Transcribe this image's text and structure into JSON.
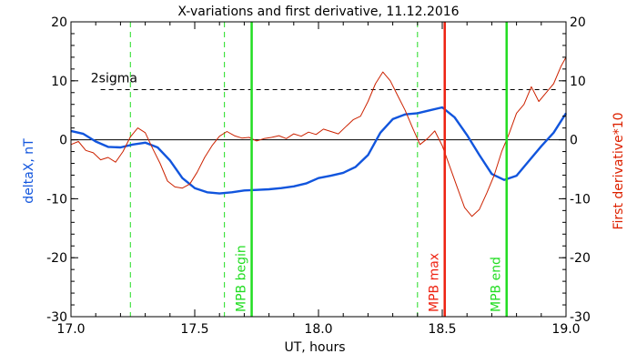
{
  "chart_data": {
    "type": "line",
    "title": "X-variations and first derivative, 11.12.2016",
    "xlabel": "UT, hours",
    "ylabel_left": "deltaX, nT",
    "ylabel_right": "First derivative*10",
    "xlim": [
      17.0,
      19.0
    ],
    "ylim": [
      -30,
      20
    ],
    "xticks": [
      17.0,
      17.5,
      18.0,
      18.5,
      19.0
    ],
    "xtick_labels": [
      "17.0",
      "17.5",
      "18.0",
      "18.5",
      "19.0"
    ],
    "yticks": [
      -30,
      -20,
      -10,
      0,
      10,
      20
    ],
    "ytick_labels": [
      "-30",
      "-20",
      "-10",
      "0",
      "10",
      "20"
    ],
    "threshold": {
      "label": "2sigma",
      "value": 8.5
    },
    "zero_line": 0,
    "dashed_verticals": [
      17.24,
      17.62,
      18.4
    ],
    "markers": [
      {
        "label": "MPB begin",
        "x": 17.73,
        "color": "#22dd22"
      },
      {
        "label": "MPB max",
        "x": 18.51,
        "color": "#ee2211"
      },
      {
        "label": "MPB end",
        "x": 18.76,
        "color": "#22dd22"
      }
    ],
    "series": [
      {
        "name": "deltaX",
        "color": "#1155dd",
        "x": [
          17.0,
          17.05,
          17.1,
          17.15,
          17.2,
          17.25,
          17.3,
          17.35,
          17.4,
          17.45,
          17.5,
          17.55,
          17.6,
          17.65,
          17.7,
          17.75,
          17.8,
          17.85,
          17.9,
          17.95,
          18.0,
          18.05,
          18.1,
          18.15,
          18.2,
          18.25,
          18.3,
          18.35,
          18.4,
          18.45,
          18.5,
          18.55,
          18.6,
          18.65,
          18.7,
          18.75,
          18.8,
          18.85,
          18.9,
          18.95,
          19.0
        ],
        "y": [
          1.5,
          1.0,
          -0.3,
          -1.2,
          -1.3,
          -0.8,
          -0.5,
          -1.3,
          -3.5,
          -6.5,
          -8.2,
          -8.9,
          -9.1,
          -8.9,
          -8.6,
          -8.5,
          -8.4,
          -8.2,
          -7.9,
          -7.4,
          -6.5,
          -6.1,
          -5.6,
          -4.6,
          -2.6,
          1.2,
          3.5,
          4.3,
          4.5,
          5.0,
          5.5,
          3.8,
          0.8,
          -2.6,
          -5.8,
          -6.8,
          -6.1,
          -3.6,
          -1.1,
          1.2,
          4.5
        ]
      },
      {
        "name": "derivative",
        "color": "#cc2200",
        "x": [
          17.0,
          17.03,
          17.06,
          17.09,
          17.12,
          17.15,
          17.18,
          17.21,
          17.24,
          17.27,
          17.3,
          17.33,
          17.36,
          17.39,
          17.42,
          17.45,
          17.48,
          17.51,
          17.54,
          17.57,
          17.6,
          17.63,
          17.66,
          17.69,
          17.72,
          17.75,
          17.78,
          17.81,
          17.84,
          17.87,
          17.9,
          17.93,
          17.96,
          17.99,
          18.02,
          18.05,
          18.08,
          18.11,
          18.14,
          18.17,
          18.2,
          18.23,
          18.26,
          18.29,
          18.32,
          18.35,
          18.38,
          18.41,
          18.44,
          18.47,
          18.5,
          18.53,
          18.56,
          18.59,
          18.62,
          18.65,
          18.68,
          18.71,
          18.74,
          18.77,
          18.8,
          18.83,
          18.86,
          18.89,
          18.92,
          18.95,
          18.98,
          19.0
        ],
        "y": [
          -0.8,
          -0.3,
          -1.8,
          -2.2,
          -3.4,
          -3.0,
          -3.8,
          -2.0,
          0.5,
          2.0,
          1.2,
          -1.5,
          -4.0,
          -7.0,
          -8.0,
          -8.2,
          -7.5,
          -5.5,
          -3.0,
          -1.0,
          0.6,
          1.4,
          0.7,
          0.3,
          0.4,
          -0.2,
          0.2,
          0.4,
          0.7,
          0.2,
          1.0,
          0.6,
          1.3,
          0.9,
          1.8,
          1.4,
          1.0,
          2.2,
          3.4,
          4.0,
          6.5,
          9.5,
          11.5,
          10.0,
          7.5,
          5.0,
          2.0,
          -0.8,
          0.2,
          1.5,
          -1.0,
          -4.5,
          -8.0,
          -11.5,
          -13.0,
          -11.8,
          -9.0,
          -6.0,
          -2.0,
          1.0,
          4.5,
          6.0,
          9.0,
          6.5,
          8.0,
          9.5,
          12.5,
          14.0
        ]
      }
    ]
  }
}
